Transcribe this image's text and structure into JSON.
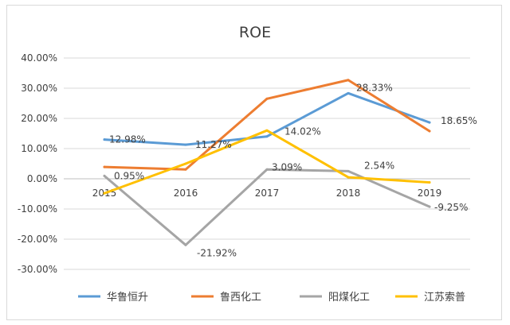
{
  "chart_data": {
    "type": "line",
    "title": "ROE",
    "categories": [
      "2015",
      "2016",
      "2017",
      "2018",
      "2019"
    ],
    "y_tick_labels": [
      "40.00%",
      "30.00%",
      "20.00%",
      "10.00%",
      "0.00%",
      "-10.00%",
      "-20.00%",
      "-30.00%"
    ],
    "ylim": [
      -30,
      40
    ],
    "grid": true,
    "legend_position": "bottom",
    "series": [
      {
        "name": "华鲁恒升",
        "color": "#5b9bd5",
        "values": [
          12.98,
          11.27,
          14.02,
          28.33,
          18.65
        ]
      },
      {
        "name": "鲁西化工",
        "color": "#ed7d31",
        "values": [
          3.9,
          3.1,
          26.5,
          32.7,
          15.8
        ]
      },
      {
        "name": "阳煤化工",
        "color": "#a5a5a5",
        "values": [
          0.95,
          -21.92,
          3.09,
          2.54,
          -9.25
        ]
      },
      {
        "name": "江苏索普",
        "color": "#ffc000",
        "values": [
          -4.8,
          5.0,
          16.0,
          0.5,
          -1.2
        ]
      }
    ],
    "data_labels": [
      {
        "text": "12.98%",
        "series": 0,
        "index": 0
      },
      {
        "text": "11.27%",
        "series": 0,
        "index": 1
      },
      {
        "text": "14.02%",
        "series": 0,
        "index": 2
      },
      {
        "text": "28.33%",
        "series": 0,
        "index": 3
      },
      {
        "text": "18.65%",
        "series": 0,
        "index": 4
      },
      {
        "text": "0.95%",
        "series": 2,
        "index": 0
      },
      {
        "text": "-21.92%",
        "series": 2,
        "index": 1
      },
      {
        "text": "3.09%",
        "series": 2,
        "index": 2
      },
      {
        "text": "2.54%",
        "series": 2,
        "index": 3
      },
      {
        "text": "-9.25%",
        "series": 2,
        "index": 4
      }
    ]
  }
}
